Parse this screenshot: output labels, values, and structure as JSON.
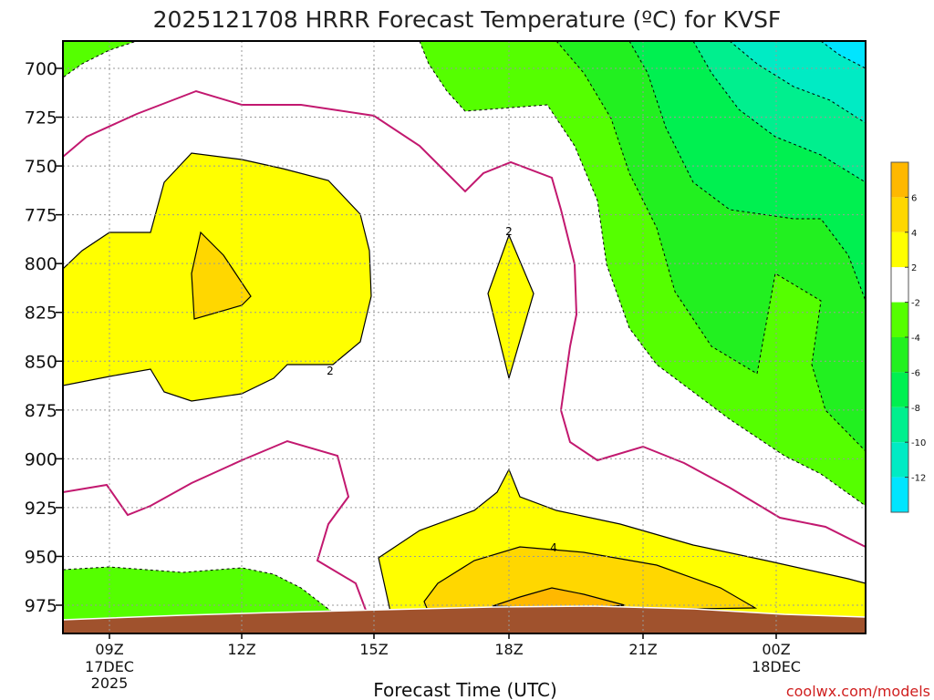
{
  "chart_data": {
    "type": "heatmap",
    "title": "2025121708 HRRR Forecast Temperature (ºC) for KVSF",
    "xlabel": "Forecast Time (UTC)",
    "ylabel": "",
    "x_ticks": [
      {
        "label": "09Z",
        "date": "17DEC",
        "year": "2025"
      },
      {
        "label": "12Z",
        "date": "",
        "year": ""
      },
      {
        "label": "15Z",
        "date": "",
        "year": ""
      },
      {
        "label": "18Z",
        "date": "",
        "year": ""
      },
      {
        "label": "21Z",
        "date": "",
        "year": ""
      },
      {
        "label": "00Z",
        "date": "18DEC",
        "year": ""
      }
    ],
    "y_ticks": [
      700,
      725,
      750,
      775,
      800,
      825,
      850,
      875,
      900,
      925,
      950,
      975
    ],
    "y_axis_inverted": true,
    "colorbar": {
      "levels": [
        -14,
        -12,
        -10,
        -8,
        -6,
        -4,
        -2,
        2,
        4,
        6,
        8
      ],
      "tick_labels": [
        "6",
        "4",
        "2",
        "-2",
        "-4",
        "-6",
        "-8",
        "-10",
        "-12"
      ],
      "colors": [
        "#00e5ff",
        "#00ebc4",
        "#00ef8e",
        "#00f050",
        "#22f020",
        "#55ff00",
        "#ffffff",
        "#ffff00",
        "#ffd700",
        "#ffb800"
      ]
    },
    "contour_labels": [
      "2",
      "2",
      "4"
    ],
    "grid": true
  },
  "credit": "coolwx.com/models"
}
